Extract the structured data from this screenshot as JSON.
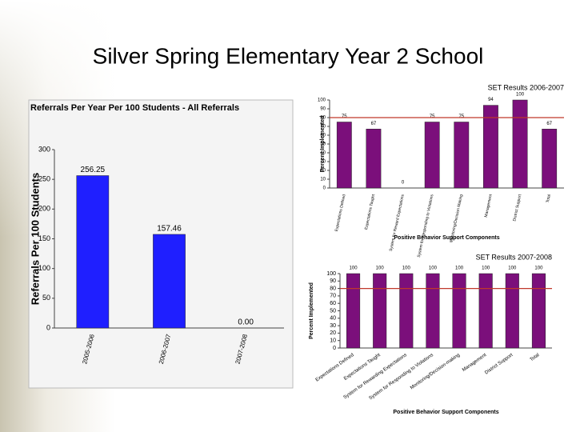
{
  "title": "Silver Spring Elementary Year 2 School",
  "chart_data": [
    {
      "type": "bar",
      "title": "Referrals Per Year Per 100 Students - All Referrals",
      "y_label": "Referrals Per 100 Students",
      "categories": [
        "2005-2006",
        "2006-2007",
        "2007-2008"
      ],
      "values": [
        256.25,
        157.46,
        0
      ],
      "value_labels": [
        "256.25",
        "157.46",
        "0.00"
      ],
      "color": "#1f1fff",
      "ylim": [
        0,
        300
      ],
      "yticks": [
        0,
        50,
        100,
        150,
        200,
        250,
        300
      ],
      "grid": false
    },
    {
      "type": "bar",
      "title": "SET Results 2006-2007",
      "y_label": "Percent Implemented",
      "x_label": "Positive Behavior Support Components",
      "categories": [
        "Expectations Defined",
        "Expectations Taught",
        "System for Reward Expectations",
        "System for Responding to Violations",
        "Monitoring/Decision Making",
        "Management",
        "District Support",
        "Total"
      ],
      "values": [
        75,
        67,
        0,
        75,
        75,
        94,
        100,
        67
      ],
      "color": "#7b0f7b",
      "reference_line": 80,
      "reference_color": "#c0392b",
      "ylim": [
        0,
        100
      ],
      "yticks": [
        0,
        10,
        20,
        30,
        40,
        50,
        60,
        70,
        80,
        90,
        100
      ],
      "grid": false
    },
    {
      "type": "bar",
      "title": "SET Results 2007-2008",
      "y_label": "Percent Implemented",
      "x_label": "Positive Behavior Support Components",
      "categories": [
        "Expectations Defined",
        "Expectations Taught",
        "System for Rewarding Expectations",
        "System for Responding to Violations",
        "Monitoring/Decision-making",
        "Management",
        "District Support",
        "Total"
      ],
      "values": [
        100,
        100,
        100,
        100,
        100,
        100,
        100,
        100
      ],
      "color": "#7b0f7b",
      "reference_line": 80,
      "reference_color": "#c0392b",
      "ylim": [
        0,
        100
      ],
      "yticks": [
        0,
        10,
        20,
        30,
        40,
        50,
        60,
        70,
        80,
        90,
        100
      ],
      "grid": false
    }
  ]
}
